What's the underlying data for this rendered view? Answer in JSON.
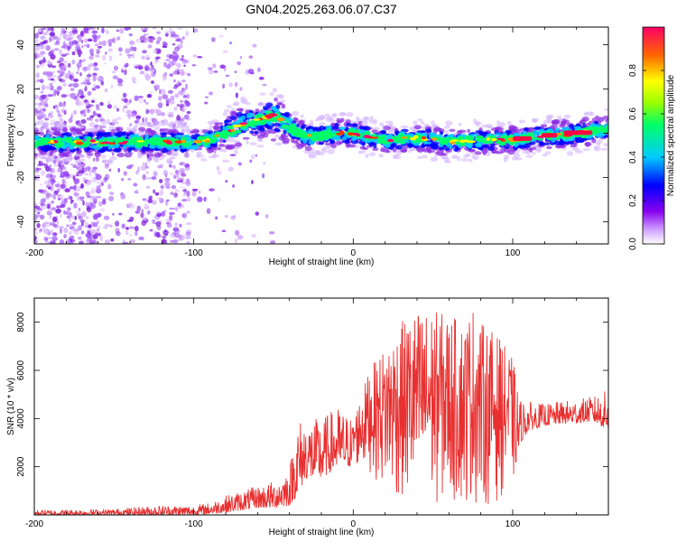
{
  "title": "GN04.2025.263.06.07.C37",
  "chart_data": [
    {
      "type": "heatmap",
      "xlabel": "Height of straight line (km)",
      "ylabel": "Frequency (Hz)",
      "xlim": [
        -200,
        160
      ],
      "ylim": [
        -50,
        48
      ],
      "xticks": [
        -200,
        -100,
        0,
        100
      ],
      "yticks": [
        -40,
        -20,
        0,
        20,
        40
      ],
      "colorbar": {
        "label": "Normalized spectral amplitude",
        "range": [
          0,
          1
        ],
        "ticks": [
          "0.0",
          "0.2",
          "0.4",
          "0.6",
          "0.8"
        ]
      },
      "ridge": {
        "x": [
          -200,
          -120,
          -100,
          -90,
          -80,
          -70,
          -60,
          -50,
          -42,
          -35,
          -25,
          -15,
          0,
          20,
          40,
          60,
          80,
          100,
          120,
          140,
          160
        ],
        "y": [
          -4,
          -4,
          -4,
          -3,
          0,
          4,
          6,
          8,
          4,
          0,
          -2,
          0,
          0,
          -3,
          -2,
          -4,
          -3,
          -3,
          -1,
          0,
          2
        ]
      }
    },
    {
      "type": "line",
      "xlabel": "Height of straight line (km)",
      "ylabel": "SNR (10 * v/v)",
      "xlim": [
        -200,
        160
      ],
      "ylim": [
        0,
        9000
      ],
      "xticks": [
        -200,
        -100,
        0,
        100
      ],
      "yticks": [
        2000,
        4000,
        6000,
        8000
      ],
      "series": [
        {
          "name": "SNR",
          "color": "#e83030",
          "envelope_x": [
            -200,
            -150,
            -120,
            -100,
            -90,
            -80,
            -70,
            -60,
            -50,
            -40,
            -35,
            -30,
            -20,
            -10,
            0,
            10,
            20,
            30,
            40,
            50,
            60,
            70,
            75,
            80,
            90,
            100,
            105,
            110,
            120,
            130,
            140,
            150,
            160
          ],
          "envelope_low": [
            0,
            0,
            0,
            0,
            50,
            100,
            200,
            300,
            300,
            400,
            800,
            1500,
            1500,
            2000,
            2000,
            1800,
            1000,
            500,
            300,
            300,
            500,
            300,
            500,
            300,
            500,
            1500,
            3000,
            3500,
            3700,
            3800,
            3800,
            3900,
            3500
          ],
          "envelope_high": [
            200,
            250,
            400,
            400,
            500,
            800,
            1000,
            1200,
            1400,
            2000,
            4000,
            4000,
            4000,
            4500,
            4000,
            6000,
            7000,
            8000,
            8500,
            8500,
            8300,
            8000,
            8700,
            8000,
            7500,
            6500,
            4800,
            4700,
            4600,
            4700,
            4800,
            4900,
            5200
          ]
        }
      ]
    }
  ]
}
